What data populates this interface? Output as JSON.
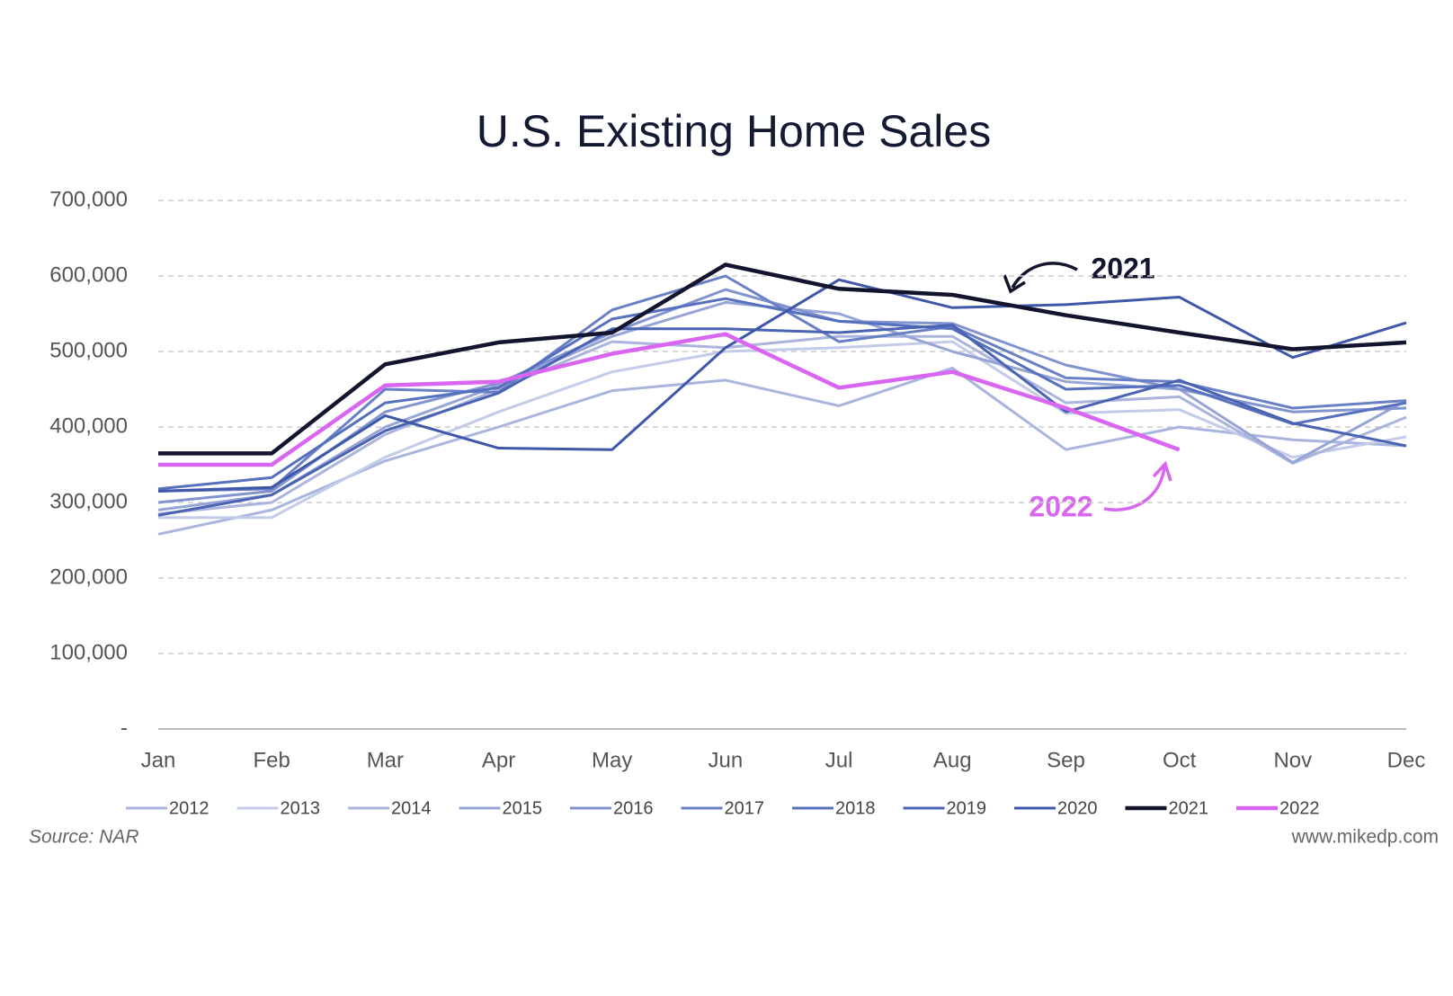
{
  "chart_data": {
    "type": "line",
    "title": "U.S. Existing Home Sales",
    "categories": [
      "Jan",
      "Feb",
      "Mar",
      "Apr",
      "May",
      "Jun",
      "Jul",
      "Aug",
      "Sep",
      "Oct",
      "Nov",
      "Dec"
    ],
    "ylim": [
      0,
      700000
    ],
    "yticks": [
      {
        "value": 0,
        "label": "-"
      },
      {
        "value": 100000,
        "label": "100,000"
      },
      {
        "value": 200000,
        "label": "200,000"
      },
      {
        "value": 300000,
        "label": "300,000"
      },
      {
        "value": 400000,
        "label": "400,000"
      },
      {
        "value": 500000,
        "label": "500,000"
      },
      {
        "value": 600000,
        "label": "600,000"
      },
      {
        "value": 700000,
        "label": "700,000"
      }
    ],
    "grid": true,
    "legend": "bottom",
    "series": [
      {
        "name": "2012",
        "color": "#a9b5de",
        "values": [
          258000,
          290000,
          355000,
          400000,
          448000,
          462000,
          428000,
          478000,
          370000,
          400000,
          383000,
          375000
        ]
      },
      {
        "name": "2013",
        "color": "#c3cbe8",
        "values": [
          280000,
          280000,
          360000,
          420000,
          473000,
          500000,
          505000,
          513000,
          418000,
          423000,
          360000,
          387000
        ]
      },
      {
        "name": "2014",
        "color": "#aab4dd",
        "values": [
          285000,
          300000,
          390000,
          450000,
          513000,
          505000,
          520000,
          520000,
          432000,
          440000,
          352000,
          413000
        ]
      },
      {
        "name": "2015",
        "color": "#97a5d6",
        "values": [
          290000,
          310000,
          400000,
          455000,
          520000,
          565000,
          550000,
          500000,
          460000,
          450000,
          353000,
          435000
        ]
      },
      {
        "name": "2016",
        "color": "#8194cf",
        "values": [
          300000,
          315000,
          420000,
          458000,
          525000,
          582000,
          540000,
          537000,
          482000,
          450000,
          420000,
          425000
        ]
      },
      {
        "name": "2017",
        "color": "#6a80c6",
        "values": [
          315000,
          318000,
          450000,
          446000,
          555000,
          600000,
          513000,
          533000,
          465000,
          460000,
          425000,
          435000
        ]
      },
      {
        "name": "2018",
        "color": "#5670bd",
        "values": [
          318000,
          333000,
          432000,
          452000,
          543000,
          570000,
          540000,
          530000,
          450000,
          455000,
          404000,
          432000
        ]
      },
      {
        "name": "2019",
        "color": "#4a63b3",
        "values": [
          283000,
          310000,
          395000,
          445000,
          530000,
          530000,
          525000,
          535000,
          420000,
          462000,
          405000,
          375000
        ]
      },
      {
        "name": "2020",
        "color": "#3f57a8",
        "values": [
          315000,
          320000,
          415000,
          372000,
          370000,
          505000,
          595000,
          558000,
          562000,
          572000,
          492000,
          538000
        ]
      },
      {
        "name": "2021",
        "color": "#13142e",
        "values": [
          365000,
          365000,
          483000,
          512000,
          525000,
          615000,
          583000,
          575000,
          548000,
          525000,
          503000,
          512000
        ]
      },
      {
        "name": "2022",
        "color": "#d966f0",
        "values": [
          350000,
          350000,
          455000,
          460000,
          497000,
          523000,
          452000,
          473000,
          425000,
          370000,
          null,
          null
        ]
      }
    ],
    "annotations": [
      "2021",
      "2022"
    ],
    "source": "Source: NAR",
    "credit": "www.mikedp.com"
  }
}
